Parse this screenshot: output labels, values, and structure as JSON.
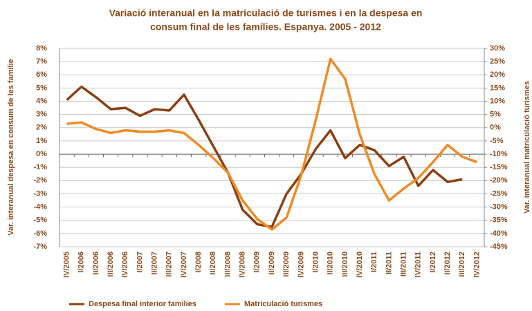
{
  "chart_data": {
    "type": "line",
    "title": [
      "Variació interanual en la matriculació de turismes i en la despesa en",
      "consum final de les famílies. Espanya. 2005 - 2012"
    ],
    "ylabel": "Var. interanual despesa en consum de les famílie",
    "y2label": "Var. interanual matriculació turismes",
    "categories": [
      "IV/2005",
      "I/2006",
      "II/2006",
      "III/2006",
      "IV/2006",
      "I/2007",
      "II/2007",
      "III/2007",
      "IV/2007",
      "I/2008",
      "II/2008",
      "III/2008",
      "IV/2008",
      "I/2009",
      "II/2009",
      "III/2009",
      "IV/2009",
      "I/2010",
      "II/2010",
      "III/2010",
      "IV/2010",
      "I/2011",
      "II/2011",
      "III/2011",
      "IV/2011",
      "I/2012",
      "II/2012",
      "III/2012",
      "IV/2012"
    ],
    "series": [
      {
        "name": "Despesa final interior famílies",
        "color": "#8b3f12",
        "axis": "y",
        "values": [
          4.1,
          5.1,
          4.3,
          3.4,
          3.5,
          2.9,
          3.4,
          3.3,
          4.5,
          2.6,
          0.6,
          -1.4,
          -4.2,
          -5.3,
          -5.5,
          -3.0,
          -1.5,
          0.4,
          1.8,
          -0.3,
          0.7,
          0.3,
          -0.9,
          -0.2,
          -2.4,
          -1.2,
          -2.1,
          -1.9,
          null
        ]
      },
      {
        "name": "Matriculació turismes",
        "color": "#f08a24",
        "axis": "y2",
        "values": [
          1.5,
          2,
          -0.5,
          -2,
          -1,
          -1.5,
          -1.5,
          -1,
          -2,
          -6.5,
          -11.5,
          -17,
          -27.5,
          -34.5,
          -38.5,
          -34,
          -18,
          3,
          26,
          18.5,
          -2.5,
          -17.5,
          -27.5,
          -23,
          -19,
          -13,
          -6.5,
          -11,
          -13
        ]
      }
    ],
    "ylim": [
      -7,
      8
    ],
    "yticks": [
      {
        "value": -7,
        "label": "-7%"
      },
      {
        "value": -6,
        "label": "-6%"
      },
      {
        "value": -5,
        "label": "-5%"
      },
      {
        "value": -4,
        "label": "-4%"
      },
      {
        "value": -3,
        "label": "-3%"
      },
      {
        "value": -2,
        "label": "-2%"
      },
      {
        "value": -1,
        "label": "-1%"
      },
      {
        "value": 0,
        "label": "0%"
      },
      {
        "value": 1,
        "label": "1%"
      },
      {
        "value": 2,
        "label": "2%"
      },
      {
        "value": 3,
        "label": "3%"
      },
      {
        "value": 4,
        "label": "4%"
      },
      {
        "value": 5,
        "label": "5%"
      },
      {
        "value": 6,
        "label": "6%"
      },
      {
        "value": 7,
        "label": "7%"
      },
      {
        "value": 8,
        "label": "8%"
      }
    ],
    "y2lim": [
      -45,
      30
    ],
    "y2ticks": [
      {
        "value": -45,
        "label": "-45%"
      },
      {
        "value": -40,
        "label": "-40%"
      },
      {
        "value": -35,
        "label": "-35%"
      },
      {
        "value": -30,
        "label": "-30%"
      },
      {
        "value": -25,
        "label": "-25%"
      },
      {
        "value": -20,
        "label": "-20%"
      },
      {
        "value": -15,
        "label": "-15%"
      },
      {
        "value": -10,
        "label": "-10%"
      },
      {
        "value": -5,
        "label": "-5%"
      },
      {
        "value": 0,
        "label": "0%"
      },
      {
        "value": 5,
        "label": "5%"
      },
      {
        "value": 10,
        "label": "10%"
      },
      {
        "value": 15,
        "label": "15%"
      },
      {
        "value": 20,
        "label": "20%"
      },
      {
        "value": 25,
        "label": "25%"
      },
      {
        "value": 30,
        "label": "30%"
      }
    ],
    "grid": true
  }
}
